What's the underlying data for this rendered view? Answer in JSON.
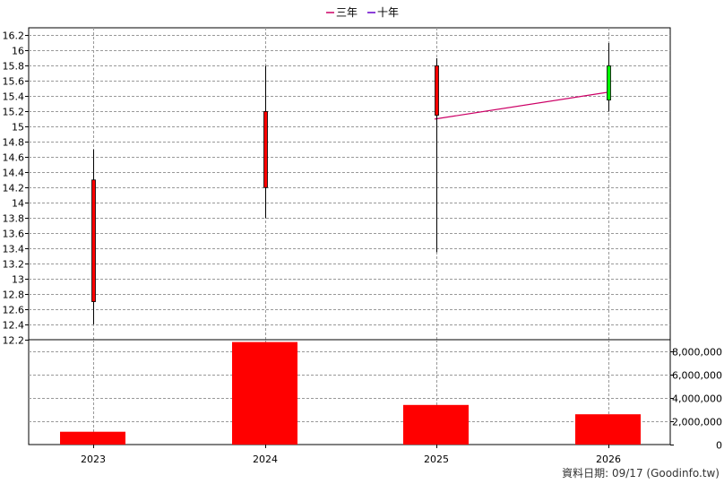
{
  "chart_data": [
    {
      "type": "candlestick",
      "legend": [
        "三年",
        "十年"
      ],
      "categories": [
        "2023",
        "2024",
        "2025",
        "2026"
      ],
      "ylim": [
        12.2,
        16.3
      ],
      "y_ticks": [
        "12.2",
        "12.4",
        "12.6",
        "12.8",
        "13",
        "13.2",
        "13.4",
        "13.6",
        "13.8",
        "14",
        "14.2",
        "14.4",
        "14.6",
        "14.8",
        "15",
        "15.2",
        "15.4",
        "15.6",
        "15.8",
        "16",
        "16.2"
      ],
      "candles": [
        {
          "x": "2023",
          "open": 12.7,
          "high": 14.7,
          "low": 12.4,
          "close": 14.3,
          "color": "#ff0000"
        },
        {
          "x": "2024",
          "open": 14.2,
          "high": 15.8,
          "low": 13.8,
          "close": 15.2,
          "color": "#ff0000"
        },
        {
          "x": "2025",
          "open": 15.15,
          "high": 15.9,
          "low": 13.35,
          "close": 15.8,
          "color": "#ff0000"
        },
        {
          "x": "2026",
          "open": 15.8,
          "high": 16.1,
          "low": 15.2,
          "close": 15.35,
          "color": "#00ff00"
        }
      ],
      "series": [
        {
          "name": "三年",
          "color": "#cc0066",
          "points": [
            {
              "x": "2025",
              "y": 15.1
            },
            {
              "x": "2026",
              "y": 15.45
            }
          ]
        },
        {
          "name": "十年",
          "color": "#6600cc",
          "points": []
        }
      ],
      "grid": true
    },
    {
      "type": "bar",
      "categories": [
        "2023",
        "2024",
        "2025",
        "2026"
      ],
      "values": [
        1100000,
        8800000,
        3400000,
        2600000
      ],
      "ylim": [
        0,
        9000000
      ],
      "y_ticks": [
        "0",
        "2,000,000",
        "4,000,000",
        "6,000,000",
        "8,000,000"
      ],
      "y_tick_values": [
        0,
        2000000,
        4000000,
        6000000,
        8000000
      ],
      "bar_color": "#ff0000",
      "grid": true
    }
  ],
  "footer": "資料日期: 09/17  (Goodinfo.tw)"
}
